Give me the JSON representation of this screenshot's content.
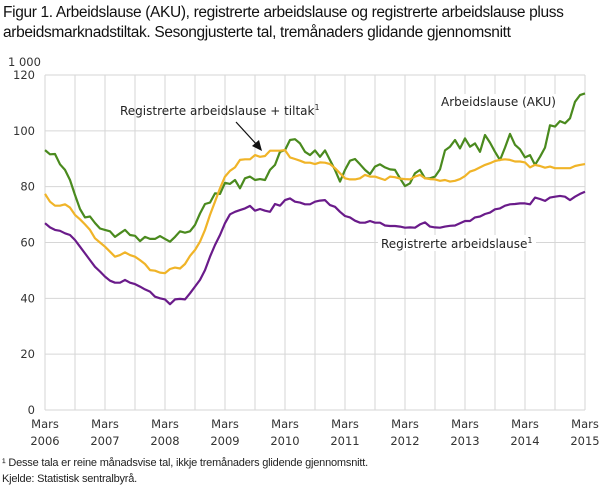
{
  "chart_data": {
    "type": "line",
    "title": "Figur 1. Arbeidslause (AKU), registrerte arbeidslause og registrerte arbeidslause pluss arbeidsmarknadstiltak. Sesongjusterte tal, tremånaders glidande gjennomsnitt",
    "ylabel": "1 000",
    "xlabel": "",
    "ylim": [
      0,
      120
    ],
    "yticks": [
      "0",
      "20",
      "40",
      "60",
      "80",
      "100",
      "120"
    ],
    "xticks": [
      {
        "month": "Mars",
        "year": "2006"
      },
      {
        "month": "Mars",
        "year": "2007"
      },
      {
        "month": "Mars",
        "year": "2008"
      },
      {
        "month": "Mars",
        "year": "2009"
      },
      {
        "month": "Mars",
        "year": "2010"
      },
      {
        "month": "Mars",
        "year": "2011"
      },
      {
        "month": "Mars",
        "year": "2012"
      },
      {
        "month": "Mars",
        "year": "2013"
      },
      {
        "month": "Mars",
        "year": "2014"
      },
      {
        "month": "Mars",
        "year": "2015"
      }
    ],
    "x_start": "Mars 2006",
    "x_end": "Mars 2015",
    "x_unit": "months since Mars 2006",
    "grid": true,
    "series": [
      {
        "name": "Arbeidslause (AKU)",
        "color": "#4a8a1e",
        "values": [
          93.1,
          91.6,
          91.7,
          88,
          86,
          82.4,
          77,
          72,
          69,
          69.3,
          67,
          65,
          64.5,
          64,
          62,
          63.3,
          64.5,
          62.7,
          62.4,
          60.5,
          62,
          61.3,
          61.3,
          62.3,
          61.3,
          60.3,
          62,
          64,
          63.5,
          64,
          66.3,
          70.4,
          73.8,
          74.3,
          77.6,
          77.4,
          81.4,
          81,
          82.4,
          79.4,
          83,
          83.6,
          82.4,
          82.7,
          82.4,
          86,
          87.8,
          92.5,
          93.1,
          96.7,
          97,
          95.5,
          92.5,
          91.3,
          93,
          90.7,
          93,
          89.5,
          86,
          81.8,
          86,
          89.3,
          89.9,
          88,
          86,
          84.5,
          87.2,
          88,
          86.9,
          86.2,
          86,
          83,
          80.2,
          81.2,
          84.8,
          86,
          83,
          83,
          83.6,
          86.2,
          93,
          94.3,
          96.7,
          93.7,
          97.3,
          94.3,
          95.5,
          92.5,
          98.5,
          95.8,
          92.5,
          89.5,
          94,
          98.9,
          95,
          93.4,
          90.5,
          91.3,
          87.8,
          90.7,
          94,
          102,
          101.5,
          103.5,
          102.7,
          104.5,
          110.4,
          112.8,
          113.4
        ]
      },
      {
        "name": "Registrerte arbeidslause + tiltak¹",
        "color": "#f0b428",
        "values": [
          77.4,
          74.6,
          73.2,
          73.2,
          73.7,
          72.5,
          69.9,
          68.3,
          66.5,
          64.5,
          61.5,
          60,
          58.5,
          56.7,
          54.9,
          55.5,
          56.5,
          55.5,
          54.9,
          53.7,
          52.3,
          50.1,
          49.9,
          49.2,
          49,
          50.5,
          51,
          50.7,
          52.3,
          55.2,
          57.3,
          60.3,
          64.5,
          69.9,
          74.6,
          79.4,
          83.6,
          85.7,
          86.9,
          89.6,
          89.8,
          89.8,
          91.3,
          90.7,
          91,
          92.9,
          92.9,
          92.9,
          93.1,
          90.5,
          89.9,
          89.3,
          88.6,
          88.6,
          88.1,
          88.7,
          88.6,
          88.1,
          86.6,
          84.8,
          83,
          82.6,
          82.6,
          83,
          84.2,
          83.6,
          83.6,
          83,
          82.4,
          83.6,
          83.4,
          82.9,
          82.7,
          82.6,
          83.6,
          84.2,
          83,
          82.7,
          82.6,
          82.1,
          82.4,
          81.8,
          82.1,
          82.7,
          83.8,
          85.4,
          86,
          86.9,
          87.8,
          88.4,
          89.2,
          89.6,
          89.8,
          89.6,
          89,
          89,
          88.7,
          86.9,
          87.8,
          87.4,
          86.8,
          87.2,
          86.6,
          86.6,
          86.6,
          86.6,
          87.4,
          87.8,
          88.1
        ]
      },
      {
        "name": "Registrerte arbeidslause¹",
        "color": "#6a1b8a",
        "values": [
          66.9,
          65.4,
          64.5,
          64.2,
          63.3,
          62.7,
          60.9,
          58.5,
          56.1,
          53.7,
          51.3,
          49.6,
          47.8,
          46.3,
          45.6,
          45.6,
          46.6,
          45.6,
          45.1,
          44.2,
          43.2,
          42.4,
          40.6,
          40,
          39.6,
          37.9,
          39.6,
          39.8,
          39.6,
          41.8,
          44.2,
          46.6,
          50.1,
          54.9,
          59.1,
          62.7,
          66.9,
          70.1,
          71,
          71.6,
          72.2,
          73.1,
          71.4,
          72,
          71.4,
          71,
          73.8,
          73.2,
          75.2,
          75.8,
          74.6,
          74.3,
          73.7,
          73.7,
          74.6,
          75,
          75.2,
          73.4,
          72.8,
          71,
          69.5,
          69,
          67.8,
          67.1,
          67.1,
          67.7,
          67.1,
          67.1,
          66.1,
          65.9,
          65.9,
          65.7,
          65.3,
          65.4,
          65.3,
          66.5,
          67.2,
          65.7,
          65.4,
          65.3,
          65.7,
          66,
          66.1,
          66.9,
          67.7,
          67.7,
          69,
          69.3,
          70.2,
          70.7,
          71.9,
          72.2,
          73.2,
          73.7,
          73.8,
          74,
          74,
          73.7,
          76.1,
          75.6,
          74.9,
          76.1,
          76.4,
          76.7,
          76.4,
          75.2,
          76.4,
          77.4,
          78.2
        ]
      }
    ],
    "annotations": {
      "aku": "Arbeidslause (AKU)",
      "tiltak": "Registrerte arbeidslause  + tiltak",
      "tiltak_sup": "1",
      "registrerte": "Registrerte arbeidslause",
      "registrerte_sup": "1"
    },
    "legend": "inline labels"
  },
  "footnote": "¹ Desse tala er reine månadsvise tal, ikkje tremånaders glidende gjennomsnitt.",
  "source": "Kjelde: Statistisk sentralbyrå."
}
